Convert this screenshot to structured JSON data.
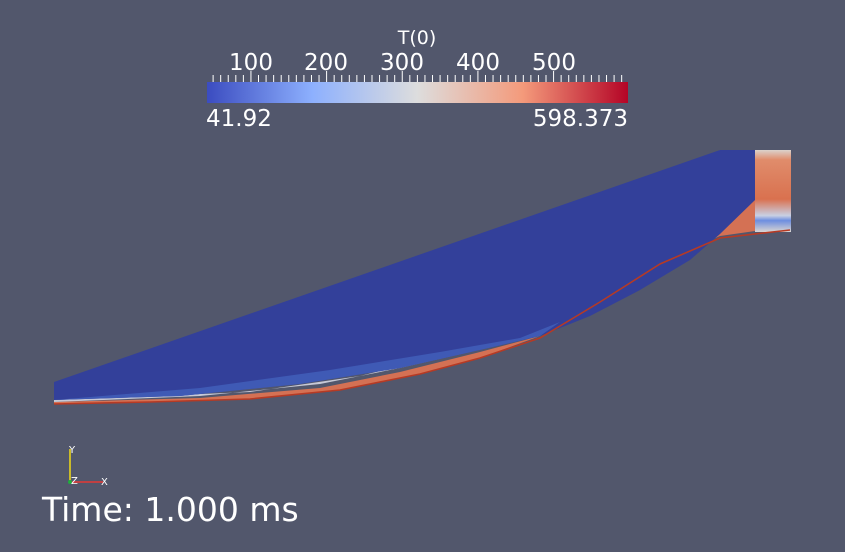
{
  "colorbar": {
    "title": "T(0)",
    "tick_labels": [
      "100",
      "200",
      "300",
      "400",
      "500"
    ],
    "tick_values": [
      100,
      200,
      300,
      400,
      500
    ],
    "range_min_label": "41.92",
    "range_max_label": "598.373",
    "range": [
      41.92,
      598.373
    ],
    "colormap": [
      "#3b4cc0",
      "#8db0fe",
      "#dddddd",
      "#f49a7b",
      "#b40426"
    ]
  },
  "axes": {
    "y": "Y",
    "z": "Z",
    "x": "X"
  },
  "time_text": "Time: 1.000 ms",
  "colors": {
    "background": "#52576c",
    "cold": "#33409a",
    "hot": "#d06a4c",
    "axis_x": "#e53935",
    "axis_y": "#e8d21a",
    "axis_z": "#1fae3d"
  }
}
